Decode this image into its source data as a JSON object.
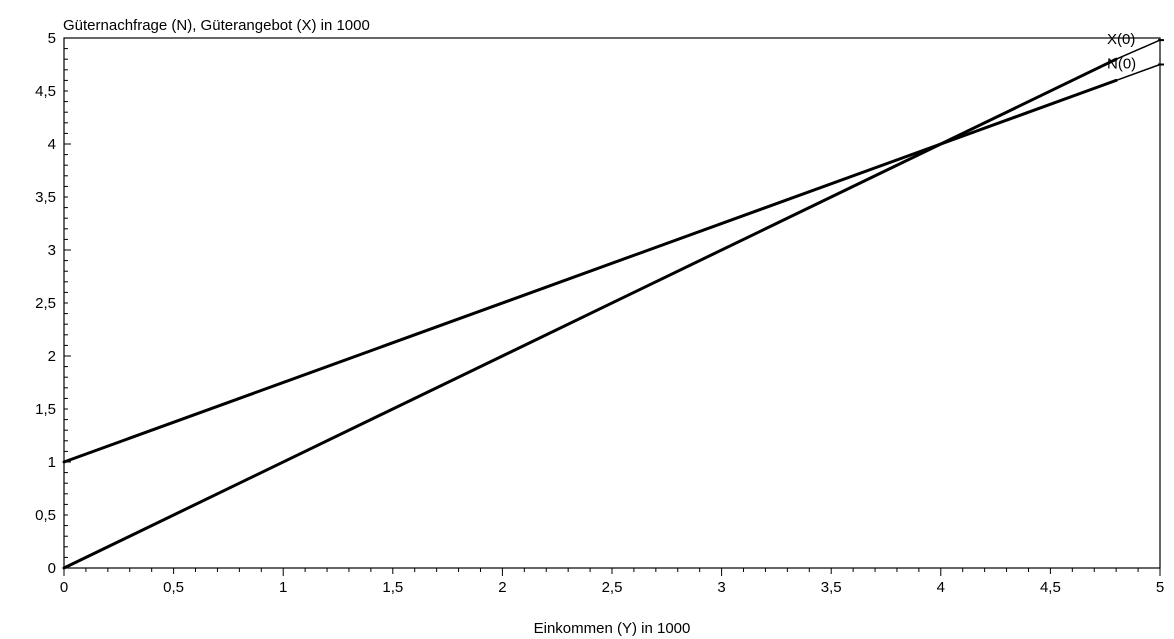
{
  "chart_data": {
    "type": "line",
    "title": "Güternachfrage (N), Güterangebot (X) in 1000",
    "xlabel": "Einkommen (Y) in 1000",
    "ylabel": "",
    "xlim": [
      0,
      5
    ],
    "ylim": [
      0,
      5
    ],
    "grid": false,
    "x_ticks": [
      "0",
      "0,5",
      "1",
      "1,5",
      "2",
      "2,5",
      "3",
      "3,5",
      "4",
      "4,5",
      "5"
    ],
    "y_ticks": [
      "0",
      "0,5",
      "1",
      "1,5",
      "2",
      "2,5",
      "3",
      "3,5",
      "4",
      "4,5",
      "5"
    ],
    "tick_values": [
      0,
      0.5,
      1,
      1.5,
      2,
      2.5,
      3,
      3.5,
      4,
      4.5,
      5
    ],
    "series": [
      {
        "name": "X(0)",
        "x": [
          0,
          4.8
        ],
        "y": [
          0,
          4.8
        ],
        "color": "#000000"
      },
      {
        "name": "N(0)",
        "x": [
          0,
          4.8
        ],
        "y": [
          1,
          4.6
        ],
        "color": "#000000"
      }
    ],
    "series_labels": [
      {
        "text": "X(0)",
        "at": [
          4.8,
          4.8
        ],
        "label_y": 4.98
      },
      {
        "text": "N(0)",
        "at": [
          4.8,
          4.6
        ],
        "label_y": 4.75
      }
    ]
  }
}
